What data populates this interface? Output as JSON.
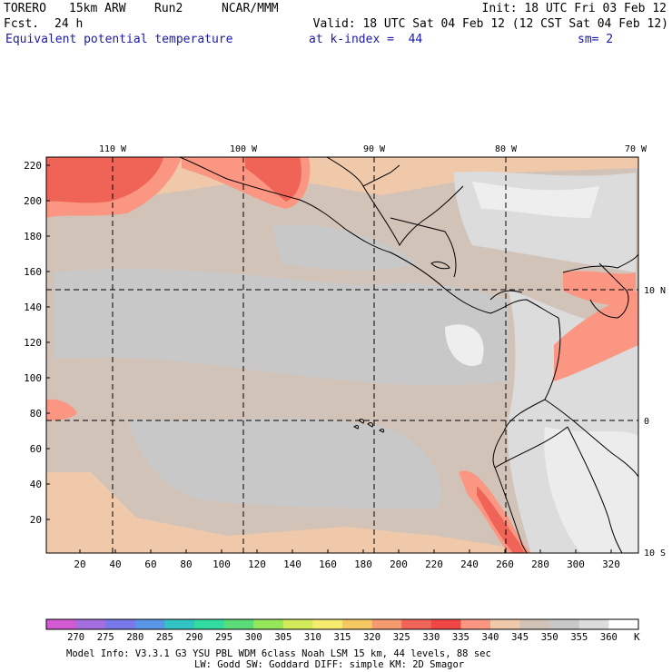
{
  "header": {
    "model": "TORERO",
    "resolution": "15km ARW",
    "run": "Run2",
    "org": "NCAR/MMM",
    "init": "Init: 18 UTC Fri 03 Feb 12",
    "fcst_label": "Fcst.",
    "fcst_value": "24 h",
    "valid": "Valid: 18 UTC Sat 04 Feb 12 (12 CST Sat 04 Feb 12)",
    "field": "Equivalent potential temperature",
    "level": "at k-index =  44",
    "smoothing": "sm= 2"
  },
  "map": {
    "lon_labels": [
      "110 W",
      "100 W",
      "90 W",
      "80 W",
      "70 W"
    ],
    "lat_labels": [
      "10 N",
      "0",
      "10 S"
    ],
    "y_ticks": [
      "220",
      "200",
      "180",
      "160",
      "140",
      "120",
      "100",
      "80",
      "60",
      "40",
      "20"
    ],
    "x_ticks": [
      "20",
      "40",
      "60",
      "80",
      "100",
      "120",
      "140",
      "160",
      "180",
      "200",
      "220",
      "240",
      "260",
      "280",
      "300",
      "320"
    ]
  },
  "colorbar": {
    "unit": "K",
    "labels": [
      "270",
      "275",
      "280",
      "285",
      "290",
      "295",
      "300",
      "305",
      "310",
      "315",
      "320",
      "325",
      "330",
      "335",
      "340",
      "345",
      "350",
      "355",
      "360"
    ],
    "colors": [
      "#d25ad2",
      "#a46ee0",
      "#7878e8",
      "#5a96e6",
      "#32c3c3",
      "#32dca0",
      "#5adc78",
      "#96e65a",
      "#d2eb5a",
      "#f5eb6e",
      "#f5c864",
      "#f59a6e",
      "#f0645a",
      "#f04646",
      "#fa9682",
      "#f0c8aa",
      "#d2c3b9",
      "#c8c8c8",
      "#dcdcdc",
      "#ffffff"
    ]
  },
  "footer": {
    "line1": "Model Info: V3.3.1    G3     YSU PBL  WDM 6class  Noah LSM  15 km,    44 levels,    88 sec",
    "line2": "LW: Godd SW: Goddard DIFF: simple KM: 2D Smagor"
  }
}
